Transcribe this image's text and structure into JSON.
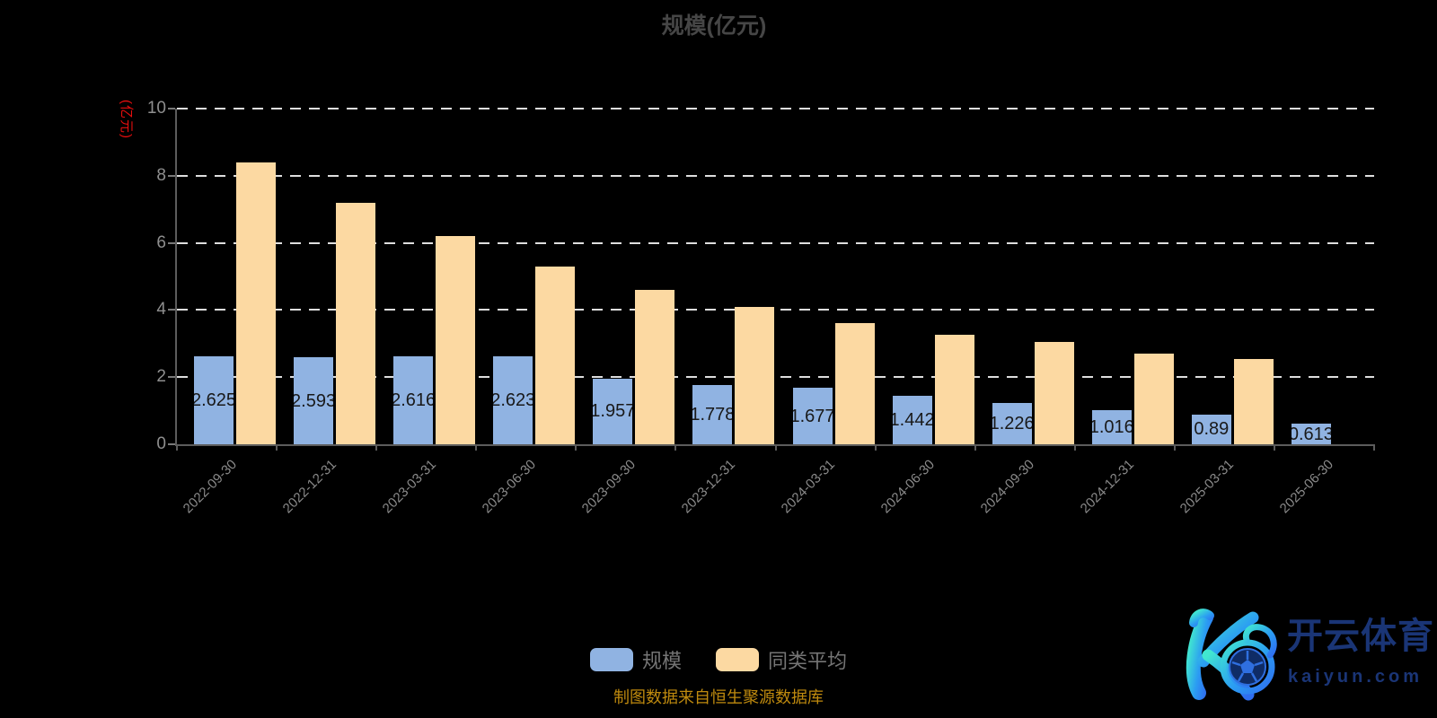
{
  "title": "规模(亿元)",
  "y_axis": {
    "name": "(亿元)",
    "name_color": "#e80e0e",
    "ticks": [
      0,
      2,
      4,
      6,
      8,
      10
    ]
  },
  "legend": {
    "items": [
      {
        "label": "规模",
        "color": "#90b3e2"
      },
      {
        "label": "同类平均",
        "color": "#fcd9a2"
      }
    ]
  },
  "source_note": "制图数据来自恒生聚源数据库",
  "watermark": {
    "brand": "开云体育",
    "domain": "kaiyun.com",
    "gradient": [
      "#41e7d0",
      "#2f6ef0"
    ],
    "text_color": "#1a3576"
  },
  "chart_data": {
    "type": "bar",
    "title": "规模(亿元)",
    "categories": [
      "2022-09-30",
      "2022-12-31",
      "2023-03-31",
      "2023-06-30",
      "2023-09-30",
      "2023-12-31",
      "2024-03-31",
      "2024-06-30",
      "2024-09-30",
      "2024-12-31",
      "2025-03-31",
      "2025-06-30"
    ],
    "series": [
      {
        "name": "规模",
        "color": "#90b3e2",
        "values": [
          2.625,
          2.593,
          2.616,
          2.623,
          1.957,
          1.778,
          1.677,
          1.442,
          1.226,
          1.016,
          0.89,
          0.613
        ],
        "labels": [
          "2.625",
          "2.593",
          "2.616",
          "2.623",
          "1.957",
          "1.778",
          "1.677",
          "1.442",
          "1.226",
          "1.016",
          "0.89",
          "0.613"
        ]
      },
      {
        "name": "同类平均",
        "color": "#fcd9a2",
        "values": [
          8.4,
          7.2,
          6.2,
          5.3,
          4.6,
          4.1,
          3.6,
          3.25,
          3.05,
          2.7,
          2.55,
          null
        ]
      }
    ],
    "ylim": [
      0,
      10
    ],
    "ylabel": "(亿元)",
    "grid": "dashed-horizontal",
    "legend_position": "bottom"
  }
}
